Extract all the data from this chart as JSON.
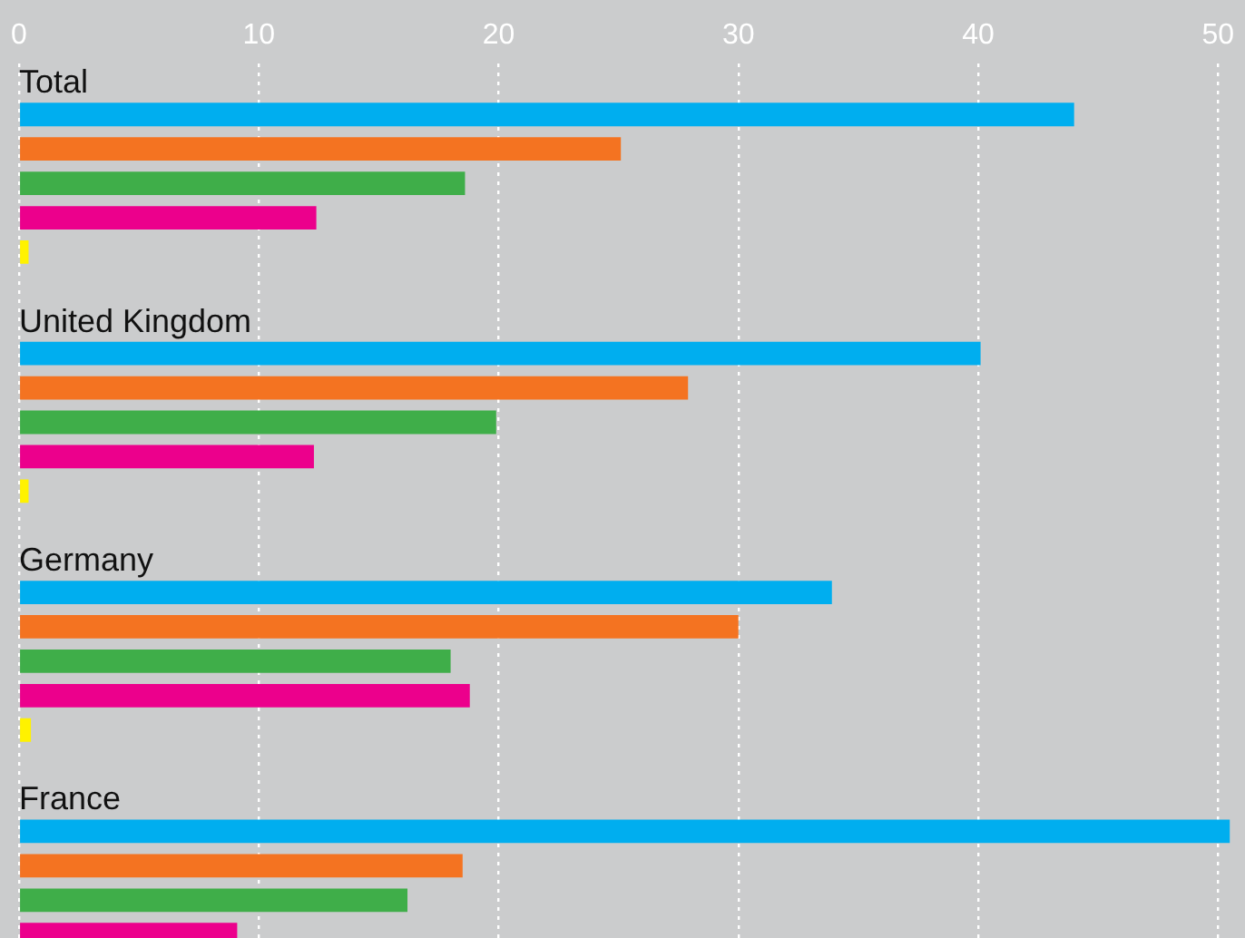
{
  "chart_data": {
    "type": "bar",
    "orientation": "horizontal",
    "categories": [
      "Total",
      "United Kingdom",
      "Germany",
      "France"
    ],
    "series": [
      {
        "color": "#00aeef",
        "values": [
          44.0,
          40.1,
          33.9,
          50.5
        ]
      },
      {
        "color": "#f47321",
        "values": [
          25.1,
          27.9,
          30.0,
          18.5
        ]
      },
      {
        "color": "#3fae49",
        "values": [
          18.6,
          19.9,
          18.0,
          16.2
        ]
      },
      {
        "color": "#ec008c",
        "values": [
          12.4,
          12.3,
          18.8,
          9.1
        ]
      },
      {
        "color": "#fff200",
        "values": [
          0.4,
          0.4,
          0.5,
          null
        ]
      }
    ],
    "xlim": [
      0,
      50.5
    ],
    "xticks": [
      0,
      10,
      20,
      30,
      40,
      50
    ],
    "grid": "x",
    "legend": false
  }
}
